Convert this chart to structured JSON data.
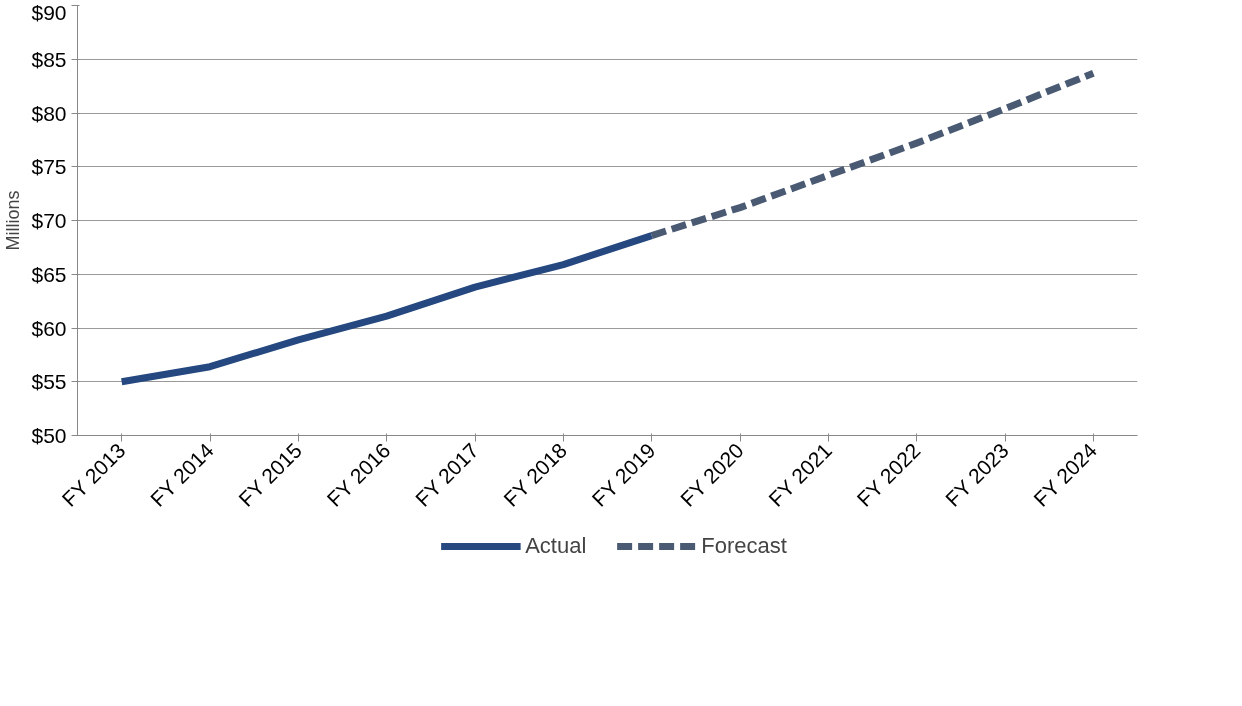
{
  "chart_data": {
    "type": "line",
    "ylabel": "Millions",
    "categories": [
      "FY 2013",
      "FY 2014",
      "FY 2015",
      "FY 2016",
      "FY 2017",
      "FY 2018",
      "FY 2019",
      "FY 2020",
      "FY 2021",
      "FY 2022",
      "FY 2023",
      "FY 2024"
    ],
    "series": [
      {
        "name": "Actual",
        "color": "#24487f",
        "line_style": "solid",
        "values": [
          55.0,
          56.4,
          58.9,
          61.1,
          63.8,
          65.9,
          68.6,
          null,
          null,
          null,
          null,
          null
        ]
      },
      {
        "name": "Forecast",
        "color": "#4a5a73",
        "line_style": "dashed",
        "values": [
          null,
          null,
          null,
          null,
          null,
          null,
          68.6,
          71.2,
          74.2,
          77.2,
          80.4,
          83.7
        ]
      }
    ],
    "ylim": [
      50,
      90
    ],
    "yticks": [
      {
        "value": 50,
        "label": "$50"
      },
      {
        "value": 55,
        "label": "$55"
      },
      {
        "value": 60,
        "label": "$60"
      },
      {
        "value": 65,
        "label": "$65"
      },
      {
        "value": 70,
        "label": "$70"
      },
      {
        "value": 75,
        "label": "$75"
      },
      {
        "value": 80,
        "label": "$80"
      },
      {
        "value": 85,
        "label": "$85"
      },
      {
        "value": 90,
        "label": "$90"
      }
    ],
    "grid": "y",
    "legend": "bottom",
    "marker": "none"
  }
}
